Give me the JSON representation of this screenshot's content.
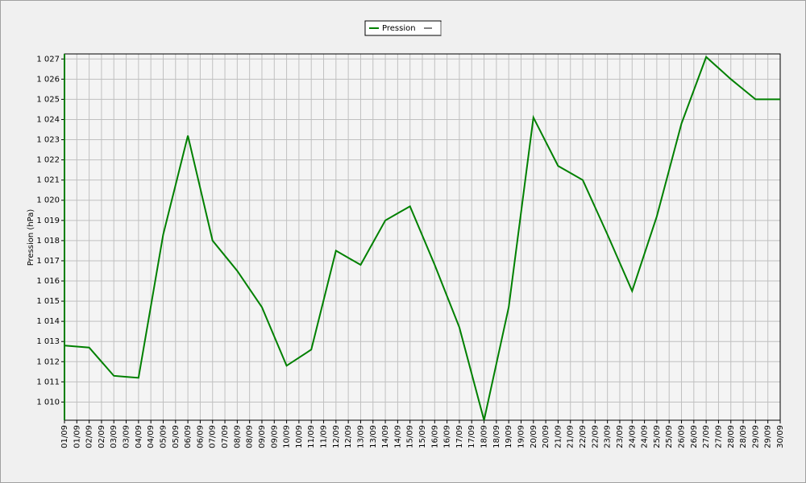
{
  "chart_data": {
    "type": "line",
    "y_label": "Pression (hPa)",
    "categories": [
      "01/09",
      "01/09",
      "02/09",
      "02/09",
      "03/09",
      "03/09",
      "04/09",
      "04/09",
      "05/09",
      "05/09",
      "06/09",
      "06/09",
      "07/09",
      "07/09",
      "08/09",
      "08/09",
      "09/09",
      "09/09",
      "10/09",
      "10/09",
      "11/09",
      "11/09",
      "12/09",
      "12/09",
      "13/09",
      "13/09",
      "14/09",
      "14/09",
      "15/09",
      "15/09",
      "16/09",
      "16/09",
      "17/09",
      "17/09",
      "18/09",
      "18/09",
      "19/09",
      "19/09",
      "20/09",
      "20/09",
      "21/09",
      "21/09",
      "22/09",
      "22/09",
      "23/09",
      "23/09",
      "24/09",
      "24/09",
      "25/09",
      "25/09",
      "26/09",
      "26/09",
      "27/09",
      "27/09",
      "28/09",
      "28/09",
      "29/09",
      "29/09",
      "30/09"
    ],
    "series": [
      {
        "name": "Pression",
        "color": "#008000",
        "values": [
          1012.8,
          1012.75,
          1012.7,
          1012.0,
          1011.3,
          1011.25,
          1011.2,
          1014.75,
          1018.3,
          1020.75,
          1023.2,
          1020.6,
          1018.0,
          1017.25,
          1016.5,
          1015.6,
          1014.7,
          1013.25,
          1011.8,
          1012.2,
          1012.6,
          1015.05,
          1017.5,
          1017.15,
          1016.8,
          1017.9,
          1019.0,
          1019.35,
          1019.7,
          1018.25,
          1016.8,
          1015.25,
          1013.7,
          1011.4,
          1009.1,
          1011.9,
          1014.7,
          1019.4,
          1024.1,
          1022.9,
          1021.7,
          1021.35,
          1021.0,
          1019.65,
          1018.3,
          1016.9,
          1015.5,
          1017.35,
          1019.2,
          1021.5,
          1023.8,
          1025.45,
          1027.1,
          1026.55,
          1026.0,
          1025.5,
          1025.0,
          1025.0,
          1025.0
        ]
      }
    ],
    "ylim": [
      1009.1,
      1027.25
    ],
    "yticks": [
      {
        "value": 1010,
        "label": "1 010"
      },
      {
        "value": 1011,
        "label": "1 011"
      },
      {
        "value": 1012,
        "label": "1 012"
      },
      {
        "value": 1013,
        "label": "1 013"
      },
      {
        "value": 1014,
        "label": "1 014"
      },
      {
        "value": 1015,
        "label": "1 015"
      },
      {
        "value": 1016,
        "label": "1 016"
      },
      {
        "value": 1017,
        "label": "1 017"
      },
      {
        "value": 1018,
        "label": "1 018"
      },
      {
        "value": 1019,
        "label": "1 019"
      },
      {
        "value": 1020,
        "label": "1 020"
      },
      {
        "value": 1021,
        "label": "1 021"
      },
      {
        "value": 1022,
        "label": "1 022"
      },
      {
        "value": 1023,
        "label": "1 023"
      },
      {
        "value": 1024,
        "label": "1 024"
      },
      {
        "value": 1025,
        "label": "1 025"
      },
      {
        "value": 1026,
        "label": "1 026"
      },
      {
        "value": 1027,
        "label": "1 027"
      }
    ],
    "grid": true,
    "legend": "top"
  }
}
